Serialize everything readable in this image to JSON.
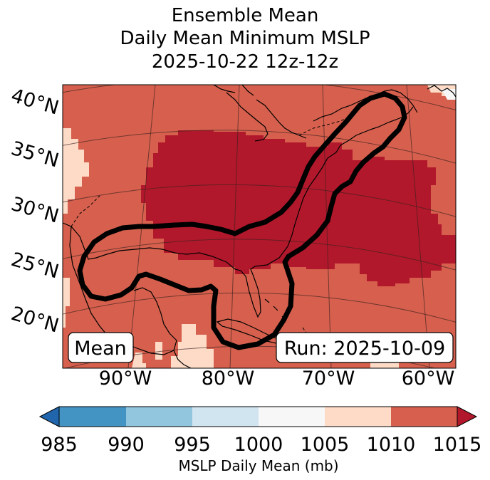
{
  "title": {
    "line1": "Ensemble Mean",
    "line2": "Daily Mean Minimum MSLP",
    "line3": "2025-10-22 12z-12z"
  },
  "map": {
    "lat_labels": [
      "40°N",
      "35°N",
      "30°N",
      "25°N",
      "20°N"
    ],
    "lon_labels": [
      "90°W",
      "80°W",
      "70°W",
      "60°W"
    ],
    "mean_box": "Mean",
    "run_box": "Run: 2025-10-09"
  },
  "colorbar": {
    "ticks": [
      "985",
      "990",
      "995",
      "1000",
      "1005",
      "1010",
      "1015"
    ],
    "label": "MSLP Daily Mean (mb)",
    "colors": {
      "under": "#2166ac",
      "c985_990": "#4393c3",
      "c990_995": "#92c5de",
      "c995_1000": "#d1e5f0",
      "c1000_1005": "#f7f7f7",
      "c1005_1010": "#fddbc7",
      "c1010_1015": "#d6604d",
      "over": "#b2182b"
    }
  }
}
